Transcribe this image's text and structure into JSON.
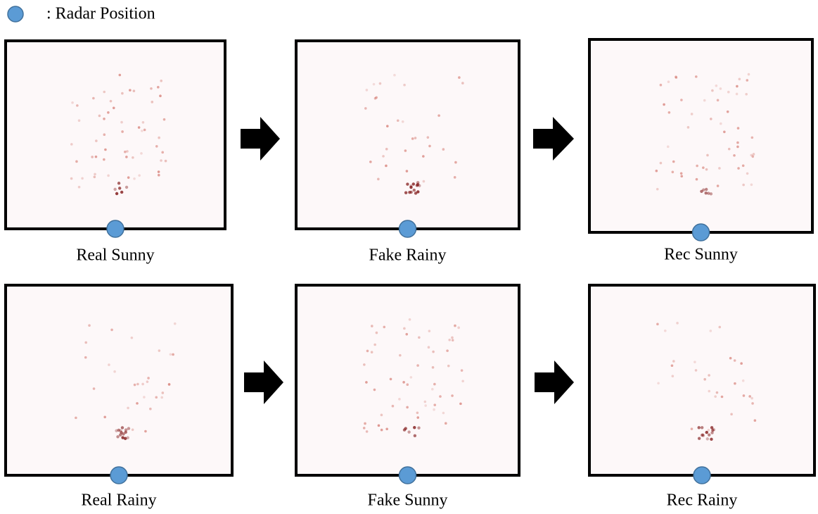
{
  "legend": {
    "label": ": Radar Position"
  },
  "panels": [
    {
      "label": "Real Sunny"
    },
    {
      "label": "Fake Rainy"
    },
    {
      "label": "Rec Sunny"
    },
    {
      "label": "Real Rainy"
    },
    {
      "label": "Fake Sunny"
    },
    {
      "label": "Rec Rainy"
    }
  ]
}
